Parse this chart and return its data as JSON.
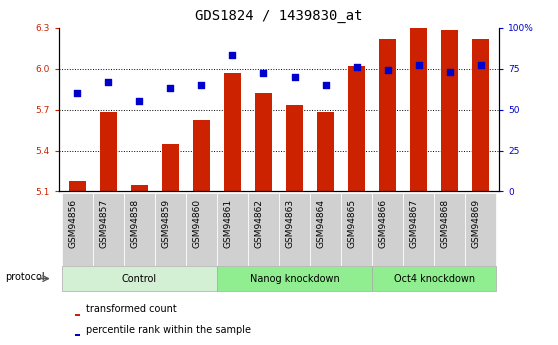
{
  "title": "GDS1824 / 1439830_at",
  "categories": [
    "GSM94856",
    "GSM94857",
    "GSM94858",
    "GSM94859",
    "GSM94860",
    "GSM94861",
    "GSM94862",
    "GSM94863",
    "GSM94864",
    "GSM94865",
    "GSM94866",
    "GSM94867",
    "GSM94868",
    "GSM94869"
  ],
  "red_values": [
    5.18,
    5.68,
    5.15,
    5.45,
    5.62,
    5.97,
    5.82,
    5.73,
    5.68,
    6.02,
    6.22,
    6.3,
    6.28,
    6.22
  ],
  "blue_percentile": [
    60,
    67,
    55,
    63,
    65,
    83,
    72,
    70,
    65,
    76,
    74,
    77,
    73,
    77
  ],
  "ylim_left": [
    5.1,
    6.3
  ],
  "ylim_right": [
    0,
    100
  ],
  "yticks_left": [
    5.1,
    5.4,
    5.7,
    6.0,
    6.3
  ],
  "yticks_right": [
    0,
    25,
    50,
    75,
    100
  ],
  "ytick_labels_right": [
    "0",
    "25",
    "50",
    "75",
    "100%"
  ],
  "groups": [
    {
      "label": "Control",
      "start": 0,
      "end": 5
    },
    {
      "label": "Nanog knockdown",
      "start": 5,
      "end": 10
    },
    {
      "label": "Oct4 knockdown",
      "start": 10,
      "end": 14
    }
  ],
  "group_colors": [
    "#d4f0d4",
    "#90ee90",
    "#90ee90"
  ],
  "protocol_label": "protocol",
  "legend_red": "transformed count",
  "legend_blue": "percentile rank within the sample",
  "bar_color": "#cc2200",
  "dot_color": "#0000cc",
  "bar_width": 0.55,
  "title_fontsize": 10,
  "tick_fontsize": 6.5,
  "axis_color_left": "#cc2200",
  "axis_color_right": "#0000cc",
  "grid_ticks": [
    5.4,
    5.7,
    6.0
  ],
  "xtick_bg": "#d0d0d0"
}
